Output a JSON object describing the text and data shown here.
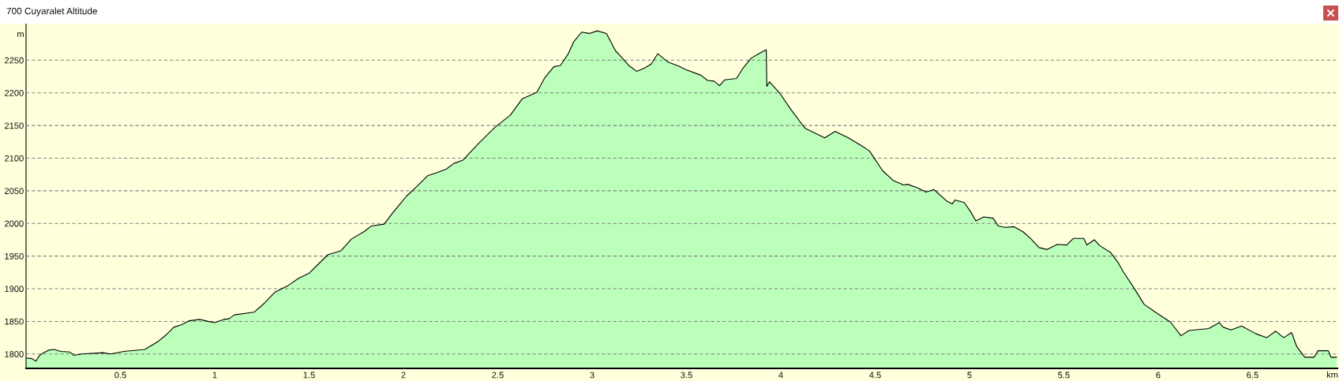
{
  "chart_data": {
    "type": "area",
    "title": "700 Cuyaralet Altitude",
    "xlabel": "km",
    "ylabel": "m",
    "x": [
      0,
      0.03,
      0.052,
      0.072,
      0.093,
      0.121,
      0.149,
      0.184,
      0.233,
      0.253,
      0.295,
      0.407,
      0.448,
      0.518,
      0.63,
      0.664,
      0.699,
      0.741,
      0.783,
      0.825,
      0.866,
      0.922,
      0.964,
      0.999,
      1.048,
      1.076,
      1.104,
      1.208,
      1.264,
      1.32,
      1.389,
      1.445,
      1.501,
      1.543,
      1.599,
      1.668,
      1.724,
      1.794,
      1.829,
      1.898,
      1.948,
      2.017,
      2.072,
      2.128,
      2.17,
      2.226,
      2.268,
      2.316,
      2.4,
      2.484,
      2.567,
      2.63,
      2.707,
      2.749,
      2.797,
      2.832,
      2.874,
      2.902,
      2.944,
      2.985,
      3.027,
      3.076,
      3.125,
      3.152,
      3.194,
      3.236,
      3.278,
      3.313,
      3.348,
      3.403,
      3.459,
      3.494,
      3.577,
      3.612,
      3.647,
      3.675,
      3.703,
      3.765,
      3.8,
      3.842,
      3.884,
      3.923,
      3.926,
      3.94,
      3.996,
      4.052,
      4.128,
      4.177,
      4.233,
      4.288,
      4.358,
      4.428,
      4.47,
      4.539,
      4.595,
      4.651,
      4.672,
      4.721,
      4.77,
      4.811,
      4.881,
      4.909,
      4.923,
      4.972,
      5.006,
      5.034,
      5.076,
      5.125,
      5.153,
      5.188,
      5.236,
      5.285,
      5.327,
      5.369,
      5.411,
      5.466,
      5.515,
      5.55,
      5.606,
      5.622,
      5.662,
      5.69,
      5.746,
      5.788,
      5.815,
      5.87,
      5.926,
      5.996,
      6.065,
      6.121,
      6.163,
      6.268,
      6.324,
      6.345,
      6.387,
      6.442,
      6.518,
      6.575,
      6.623,
      6.665,
      6.707,
      6.735,
      6.777,
      6.826,
      6.847,
      6.902,
      6.916,
      6.946
    ],
    "series": [
      {
        "color": "#bbffbb",
        "values": [
          1794,
          1793,
          1789,
          1798,
          1802,
          1806,
          1807,
          1804,
          1803,
          1798,
          1800,
          1802,
          1800,
          1804,
          1807,
          1813,
          1819,
          1829,
          1841,
          1845,
          1851,
          1853,
          1850,
          1848,
          1853,
          1854,
          1860,
          1864,
          1878,
          1895,
          1905,
          1916,
          1924,
          1936,
          1952,
          1958,
          1976,
          1988,
          1996,
          1999,
          2018,
          2042,
          2057,
          2073,
          2077,
          2083,
          2092,
          2097,
          2123,
          2147,
          2166,
          2191,
          2201,
          2223,
          2240,
          2242,
          2260,
          2278,
          2293,
          2291,
          2295,
          2291,
          2264,
          2256,
          2242,
          2233,
          2238,
          2244,
          2260,
          2247,
          2241,
          2236,
          2227,
          2219,
          2218,
          2211,
          2220,
          2222,
          2238,
          2253,
          2260,
          2266,
          2210,
          2217,
          2199,
          2175,
          2146,
          2139,
          2131,
          2141,
          2131,
          2119,
          2111,
          2081,
          2066,
          2059,
          2060,
          2055,
          2048,
          2052,
          2034,
          2030,
          2036,
          2032,
          2018,
          2004,
          2010,
          2008,
          1996,
          1994,
          1995,
          1987,
          1976,
          1963,
          1960,
          1968,
          1967,
          1977,
          1977,
          1967,
          1975,
          1966,
          1956,
          1940,
          1926,
          1902,
          1876,
          1862,
          1849,
          1828,
          1836,
          1839,
          1848,
          1841,
          1837,
          1843,
          1831,
          1825,
          1835,
          1825,
          1833,
          1811,
          1795,
          1795,
          1805,
          1805,
          1795,
          1795
        ]
      }
    ],
    "xlim": [
      0,
      6.95
    ],
    "ylim": [
      1778,
      2306
    ],
    "xticks": [
      0.5,
      1,
      1.5,
      2,
      2.5,
      3,
      3.5,
      4,
      4.5,
      5,
      5.5,
      6,
      6.5
    ],
    "yticks": [
      1800,
      1850,
      1900,
      1950,
      2000,
      2050,
      2100,
      2150,
      2200,
      2250
    ],
    "grid": "y"
  }
}
